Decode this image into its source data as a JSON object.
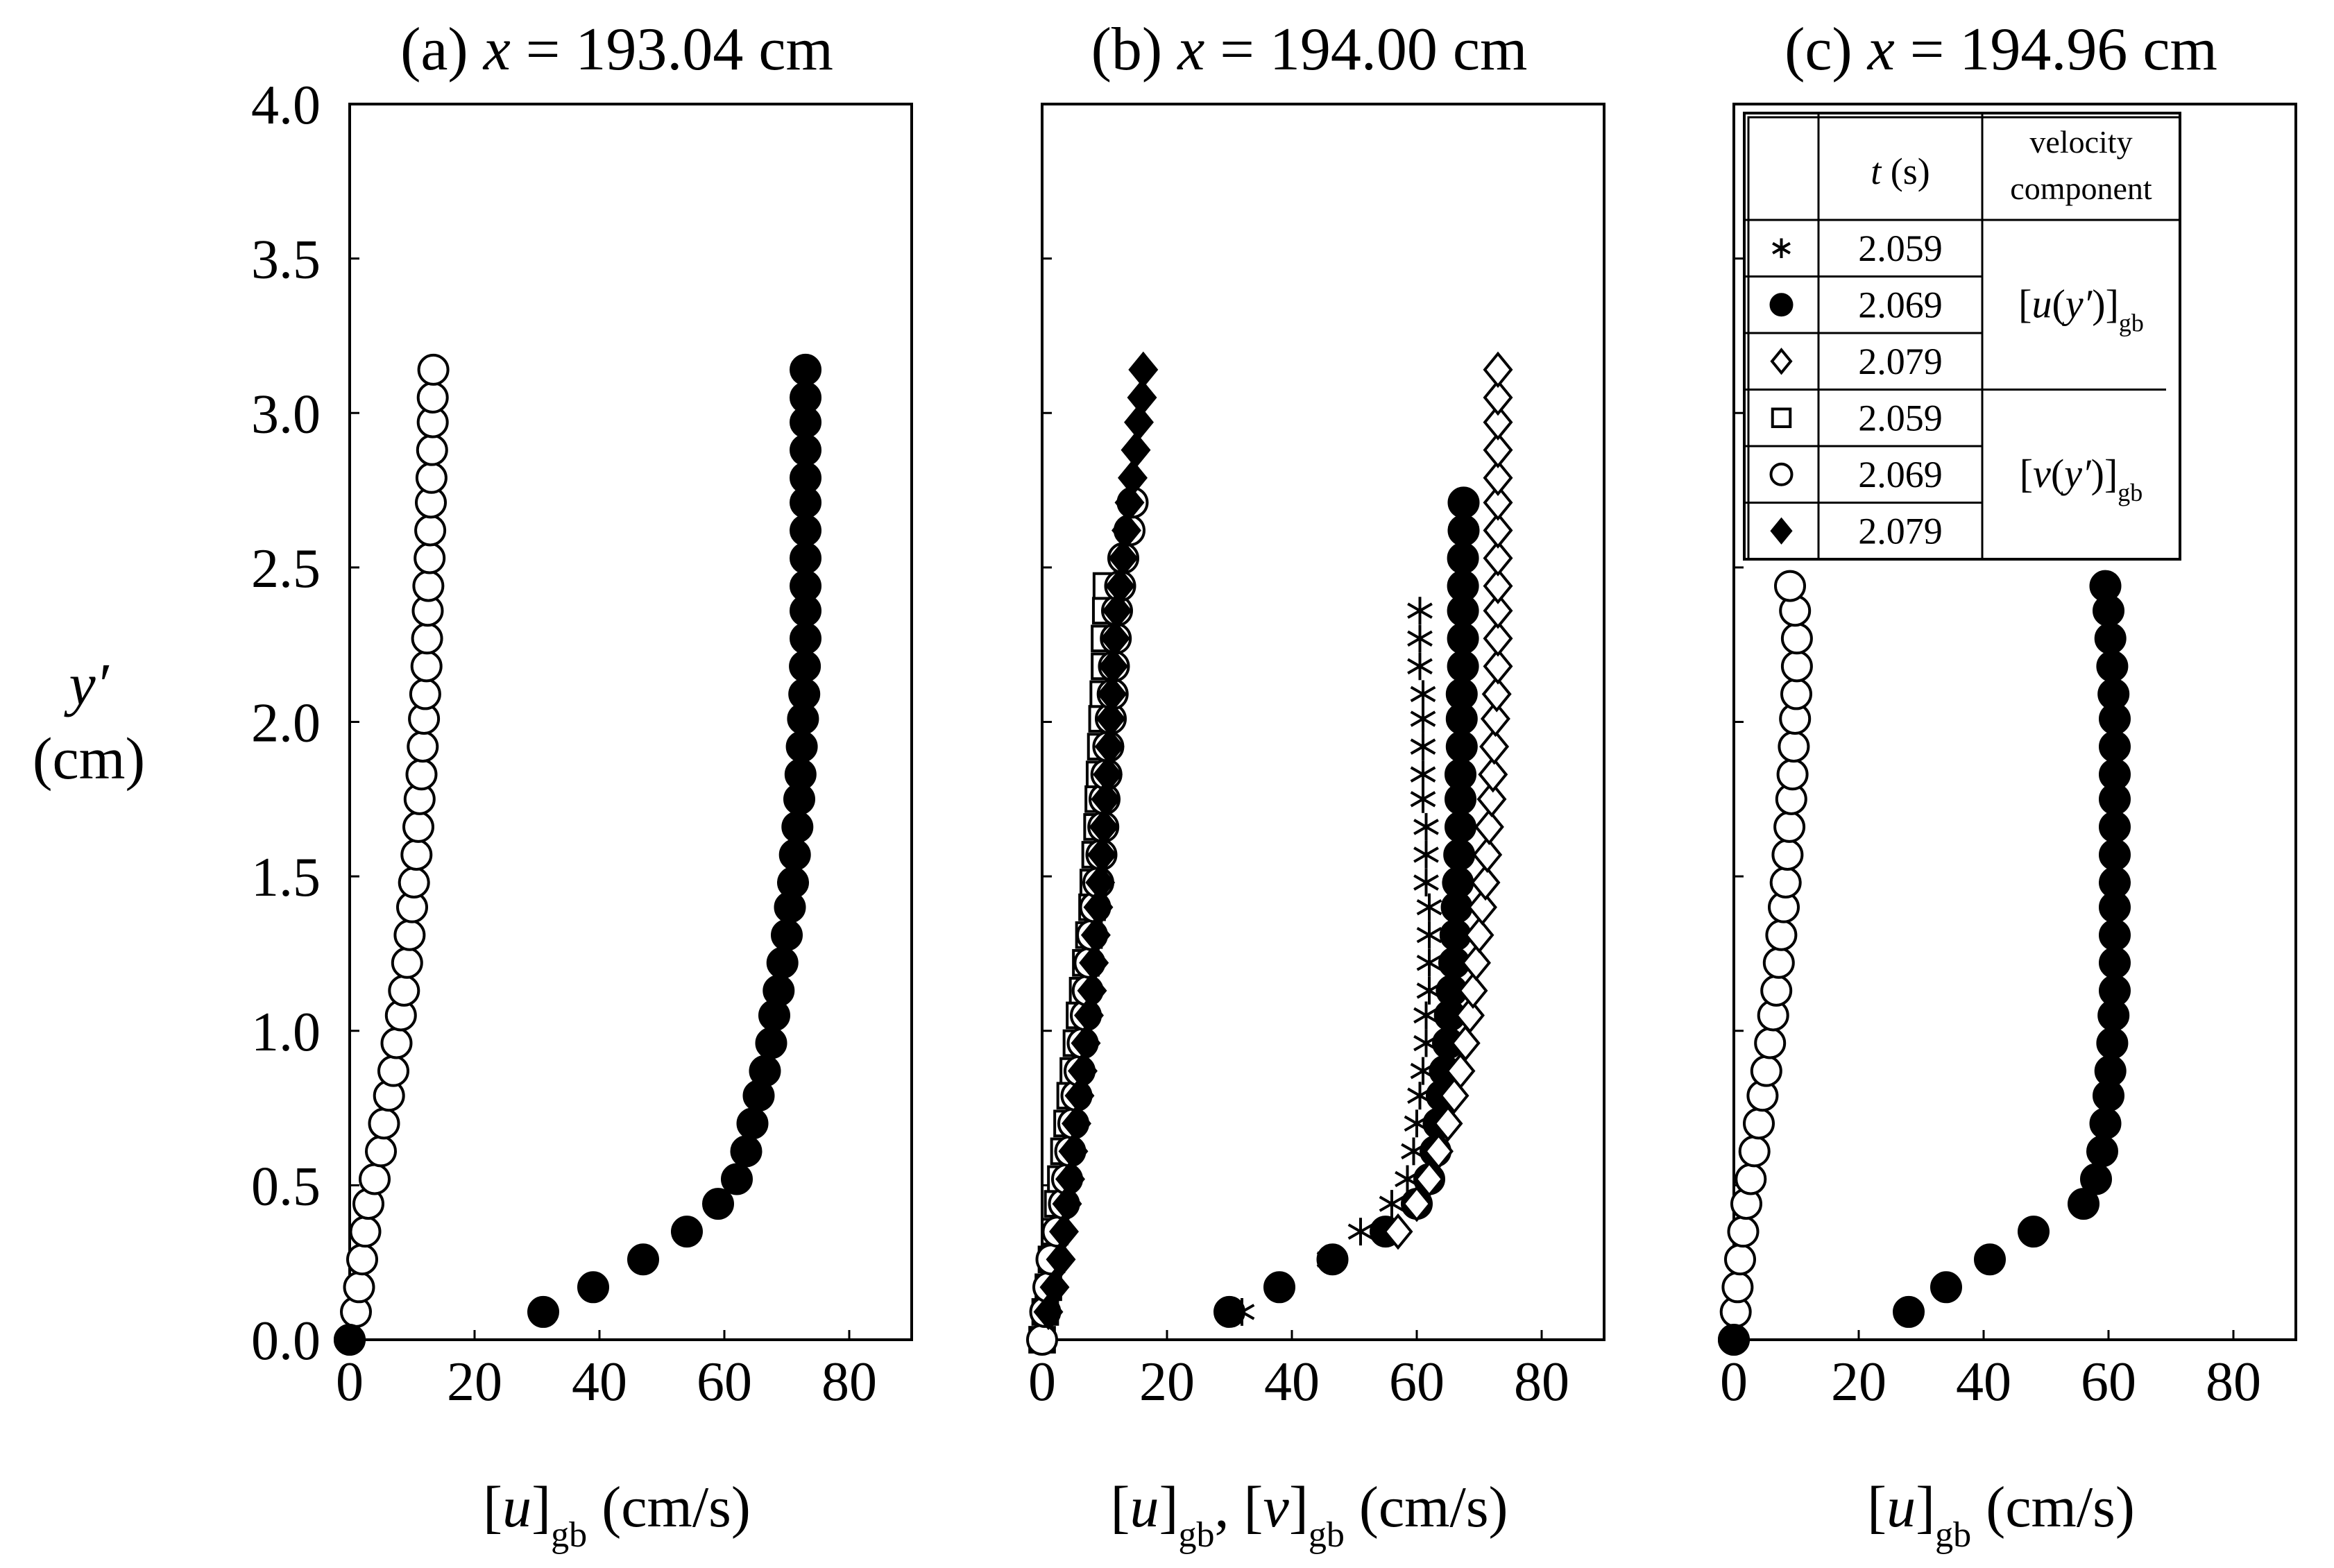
{
  "chart_data": [
    {
      "type": "scatter",
      "title": [
        "(a) ",
        "x",
        " = 193.04 cm"
      ],
      "ylabel": [
        "y′",
        "(cm)"
      ],
      "xlabel": [
        "[",
        "u",
        "]",
        "gb",
        " (cm/s)"
      ],
      "xlim": [
        0,
        90
      ],
      "ylim": [
        0,
        4
      ],
      "xticks": [
        0,
        20,
        40,
        60,
        80
      ],
      "yticks": [
        {
          "value": 0,
          "label": "0.0"
        },
        {
          "value": 0.5,
          "label": "0.5"
        },
        {
          "value": 1,
          "label": "1.0"
        },
        {
          "value": 1.5,
          "label": "1.5"
        },
        {
          "value": 2,
          "label": "2.0"
        },
        {
          "value": 2.5,
          "label": "2.5"
        },
        {
          "value": 3,
          "label": "3.0"
        },
        {
          "value": 3.5,
          "label": "3.5"
        },
        {
          "value": 4,
          "label": "4.0"
        }
      ],
      "series": [
        {
          "marker": "open-circle",
          "x": [
            0,
            1,
            1.5,
            2,
            2.5,
            3,
            4,
            5,
            5.5,
            6.3,
            7,
            7.5,
            8.2,
            8.7,
            9.2,
            9.6,
            10,
            10.3,
            10.7,
            11,
            11.2,
            11.5,
            11.7,
            11.9,
            12.1,
            12.3,
            12.4,
            12.5,
            12.6,
            12.8,
            12.9,
            13,
            13.1,
            13.2,
            13.3,
            13.3,
            13.4
          ],
          "values": [
            0,
            0.09,
            0.17,
            0.26,
            0.35,
            0.44,
            0.52,
            0.61,
            0.7,
            0.79,
            0.87,
            0.96,
            1.05,
            1.13,
            1.22,
            1.31,
            1.4,
            1.48,
            1.57,
            1.66,
            1.75,
            1.83,
            1.92,
            2.01,
            2.09,
            2.18,
            2.27,
            2.36,
            2.44,
            2.53,
            2.62,
            2.71,
            2.79,
            2.88,
            2.97,
            3.05,
            3.14
          ]
        },
        {
          "marker": "filled-circle",
          "x": [
            0,
            31,
            39,
            47,
            54,
            59,
            62,
            63.5,
            64.5,
            65.5,
            66.5,
            67.5,
            68,
            68.7,
            69.3,
            70,
            70.5,
            71,
            71.3,
            71.7,
            72,
            72.2,
            72.4,
            72.6,
            72.8,
            72.9,
            73,
            73,
            73,
            73,
            73,
            73,
            73,
            73,
            73,
            73,
            73
          ],
          "values": [
            0,
            0.09,
            0.17,
            0.26,
            0.35,
            0.44,
            0.52,
            0.61,
            0.7,
            0.79,
            0.87,
            0.96,
            1.05,
            1.13,
            1.22,
            1.31,
            1.4,
            1.48,
            1.57,
            1.66,
            1.75,
            1.83,
            1.92,
            2.01,
            2.09,
            2.18,
            2.27,
            2.36,
            2.44,
            2.53,
            2.62,
            2.71,
            2.79,
            2.88,
            2.97,
            3.05,
            3.14
          ]
        }
      ]
    },
    {
      "type": "scatter",
      "title": [
        "(b) ",
        "x",
        " = 194.00 cm"
      ],
      "xlabel": [
        "[",
        "u",
        "]",
        "gb",
        ", [",
        "v",
        "]",
        "gb",
        " (cm/s)"
      ],
      "xlim": [
        0,
        90
      ],
      "ylim": [
        0,
        4
      ],
      "xticks": [
        0,
        20,
        40,
        60,
        80
      ],
      "yticks": [
        0,
        0.5,
        1,
        1.5,
        2,
        2.5,
        3,
        3.5,
        4
      ],
      "series": [
        {
          "name": "2.059",
          "marker": "asterisk",
          "x": [
            32,
            38,
            46,
            51,
            56,
            58.5,
            59.5,
            60,
            60.5,
            61,
            61.5,
            61.5,
            62,
            62,
            62,
            62,
            61.5,
            61.5,
            61.5,
            61,
            61,
            61,
            61,
            61,
            60.5,
            60.5,
            60.5
          ],
          "values": [
            0.09,
            0.17,
            0.26,
            0.35,
            0.44,
            0.52,
            0.61,
            0.7,
            0.79,
            0.87,
            0.96,
            1.05,
            1.13,
            1.22,
            1.31,
            1.4,
            1.48,
            1.57,
            1.66,
            1.75,
            1.83,
            1.92,
            2.01,
            2.09,
            2.18,
            2.27,
            2.36
          ]
        },
        {
          "name": "2.069",
          "marker": "filled-circle",
          "x": [
            30,
            38,
            46.5,
            55,
            60,
            62,
            63,
            63.5,
            64,
            64.5,
            65,
            65.3,
            65.6,
            66,
            66.2,
            66.4,
            66.6,
            66.8,
            67,
            67,
            67,
            67.2,
            67.2,
            67.2,
            67.4,
            67.4,
            67.4,
            67.4,
            67.4,
            67.5,
            67.5
          ],
          "values": [
            0.09,
            0.17,
            0.26,
            0.35,
            0.44,
            0.52,
            0.61,
            0.7,
            0.79,
            0.87,
            0.96,
            1.05,
            1.13,
            1.22,
            1.31,
            1.4,
            1.48,
            1.57,
            1.66,
            1.75,
            1.83,
            1.92,
            2.01,
            2.09,
            2.18,
            2.27,
            2.36,
            2.44,
            2.53,
            2.62,
            2.71
          ]
        },
        {
          "name": "2.079",
          "marker": "open-diamond",
          "x": [
            57,
            60,
            62,
            63.5,
            65,
            66,
            67,
            67.8,
            68.5,
            69,
            69.5,
            70,
            70.5,
            71,
            71.3,
            71.6,
            72,
            72.2,
            72.4,
            72.6,
            72.8,
            73,
            73,
            73,
            73,
            73,
            73,
            73,
            73,
            73,
            73,
            73,
            73
          ],
          "values": [
            0.35,
            0.44,
            0.52,
            0.61,
            0.7,
            0.79,
            0.87,
            0.96,
            1.05,
            1.13,
            1.22,
            1.31,
            1.4,
            1.48,
            1.57,
            1.66,
            1.75,
            1.83,
            1.92,
            2.01,
            2.09,
            2.18,
            2.27,
            2.36,
            2.44,
            2.53,
            2.62,
            2.71,
            2.79,
            2.88,
            2.97,
            3.05,
            3.14
          ]
        },
        {
          "name": "2.059",
          "marker": "open-square",
          "x": [
            0,
            0.5,
            1,
            1.5,
            2,
            2.5,
            3,
            3.5,
            4,
            4.5,
            5,
            5.5,
            6,
            6.5,
            7,
            7.5,
            8,
            8.2,
            8.5,
            8.8,
            9,
            9.2,
            9.4,
            9.6,
            9.8,
            10,
            10,
            10.2,
            10.3
          ],
          "values": [
            0,
            0.09,
            0.17,
            0.26,
            0.35,
            0.44,
            0.52,
            0.61,
            0.7,
            0.79,
            0.87,
            0.96,
            1.05,
            1.13,
            1.22,
            1.31,
            1.4,
            1.48,
            1.57,
            1.66,
            1.75,
            1.83,
            1.92,
            2.01,
            2.09,
            2.18,
            2.27,
            2.36,
            2.44
          ]
        },
        {
          "name": "2.069",
          "marker": "open-circle",
          "x": [
            0,
            0.5,
            1,
            1.5,
            2.5,
            3.5,
            4,
            4.5,
            5,
            5.5,
            6,
            6.5,
            7,
            7.3,
            7.6,
            8,
            8.5,
            9,
            9.5,
            9.8,
            10,
            10.3,
            10.6,
            11,
            11.3,
            11.5,
            11.8,
            12,
            12.5,
            13,
            14,
            14.5
          ],
          "values": [
            0,
            0.09,
            0.17,
            0.26,
            0.35,
            0.44,
            0.52,
            0.61,
            0.7,
            0.79,
            0.87,
            0.96,
            1.05,
            1.13,
            1.22,
            1.31,
            1.4,
            1.48,
            1.57,
            1.66,
            1.75,
            1.83,
            1.92,
            2.01,
            2.09,
            2.18,
            2.27,
            2.36,
            2.44,
            2.53,
            2.62,
            2.71
          ]
        },
        {
          "name": "2.079",
          "marker": "filled-diamond",
          "x": [
            1,
            2,
            3,
            3.5,
            4,
            4.5,
            5,
            5.5,
            6,
            6.5,
            7,
            7.5,
            8,
            8.3,
            8.6,
            9,
            9.3,
            9.6,
            9.9,
            10.2,
            10.5,
            10.8,
            11,
            11.2,
            11.4,
            11.7,
            12,
            12.5,
            13,
            13.5,
            14,
            14.5,
            15,
            15.5,
            16,
            16.2
          ],
          "values": [
            0.09,
            0.17,
            0.26,
            0.35,
            0.44,
            0.52,
            0.61,
            0.7,
            0.79,
            0.87,
            0.96,
            1.05,
            1.13,
            1.22,
            1.31,
            1.4,
            1.48,
            1.57,
            1.66,
            1.75,
            1.83,
            1.92,
            2.01,
            2.09,
            2.18,
            2.27,
            2.36,
            2.44,
            2.53,
            2.62,
            2.71,
            2.79,
            2.88,
            2.97,
            3.05,
            3.14
          ]
        }
      ]
    },
    {
      "type": "scatter",
      "title": [
        "(c) ",
        "x",
        " = 194.96 cm"
      ],
      "xlabel": [
        "[",
        "u",
        "]",
        "gb",
        " (cm/s)"
      ],
      "xlim": [
        0,
        90
      ],
      "ylim": [
        0,
        4
      ],
      "xticks": [
        0,
        20,
        40,
        60,
        80
      ],
      "yticks": [
        0,
        0.5,
        1,
        1.5,
        2,
        2.5,
        3,
        3.5,
        4
      ],
      "legend": {
        "headers": [
          [
            "t",
            " (s)"
          ],
          [
            "velocity",
            "component"
          ]
        ],
        "components": [
          [
            "[",
            "u",
            "(",
            "y′",
            ")]",
            "gb"
          ],
          [
            "[",
            "v",
            "(",
            "y′",
            ")]",
            "gb"
          ]
        ]
      },
      "series": [
        {
          "marker": "open-circle",
          "x": [
            0,
            0.3,
            0.6,
            1,
            1.5,
            2,
            2.7,
            3.3,
            4,
            4.6,
            5.2,
            5.8,
            6.3,
            6.8,
            7.2,
            7.6,
            8,
            8.3,
            8.6,
            8.9,
            9.2,
            9.4,
            9.6,
            9.8,
            10,
            10.1,
            10.1,
            9.8,
            9
          ],
          "values": [
            0,
            0.09,
            0.17,
            0.26,
            0.35,
            0.44,
            0.52,
            0.61,
            0.7,
            0.79,
            0.87,
            0.96,
            1.05,
            1.13,
            1.22,
            1.31,
            1.4,
            1.48,
            1.57,
            1.66,
            1.75,
            1.83,
            1.92,
            2.01,
            2.09,
            2.18,
            2.27,
            2.36,
            2.44
          ]
        },
        {
          "marker": "filled-circle",
          "x": [
            0,
            28,
            34,
            41,
            48,
            56,
            58,
            59,
            59.5,
            60,
            60.3,
            60.6,
            60.8,
            61,
            61,
            61,
            61,
            61,
            61,
            61,
            61,
            61,
            61,
            61,
            60.8,
            60.6,
            60.3,
            60,
            59.5
          ],
          "values": [
            0,
            0.09,
            0.17,
            0.26,
            0.35,
            0.44,
            0.52,
            0.61,
            0.7,
            0.79,
            0.87,
            0.96,
            1.05,
            1.13,
            1.22,
            1.31,
            1.4,
            1.48,
            1.57,
            1.66,
            1.75,
            1.83,
            1.92,
            2.01,
            2.09,
            2.18,
            2.27,
            2.36,
            2.44
          ]
        }
      ]
    }
  ]
}
